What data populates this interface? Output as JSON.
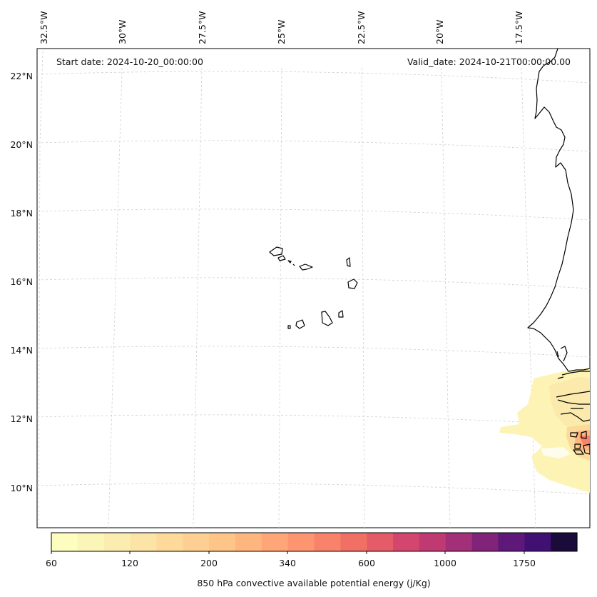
{
  "header": {
    "start_date": "Start date: 2024-10-20_00:00:00",
    "valid_date": "Valid_date: 2024-10-21T00:00:00.00"
  },
  "axes": {
    "lon_labels": [
      "32.5°W",
      "30°W",
      "27.5°W",
      "25°W",
      "22.5°W",
      "20°W",
      "17.5°W"
    ],
    "lat_labels": [
      "22°N",
      "20°N",
      "18°N",
      "16°N",
      "14°N",
      "12°N",
      "10°N"
    ]
  },
  "colorbar": {
    "label": "850 hPa convective available potential energy (j/Kg)",
    "tick_labels": [
      "60",
      "120",
      "200",
      "340",
      "600",
      "1000",
      "1750"
    ],
    "colors": [
      "#fcfdbf",
      "#fcf5b8",
      "#fbedb0",
      "#fbe4a5",
      "#fdd99a",
      "#fecf92",
      "#fec488",
      "#feb67f",
      "#fea677",
      "#fd9570",
      "#f8836a",
      "#f17066",
      "#e45c68",
      "#d3466e",
      "#bf3a73",
      "#a22f77",
      "#812479",
      "#5e187a",
      "#411073",
      "#1a0b3a"
    ]
  },
  "chart_data": {
    "type": "heatmap",
    "title": "",
    "variable": "850 hPa convective available potential energy (j/Kg)",
    "start_date": "2024-10-20_00:00:00",
    "valid_date": "2024-10-21T00:00:00.00",
    "lon_range": [
      -33,
      -16.5
    ],
    "lat_range": [
      9,
      22.5
    ],
    "colorbar_levels": [
      60,
      120,
      200,
      340,
      600,
      1000,
      1750
    ],
    "notes_visible": "Low CAPE (~60-340 j/Kg) only near the West African coast around 10.5-13°N; elsewhere blank"
  }
}
